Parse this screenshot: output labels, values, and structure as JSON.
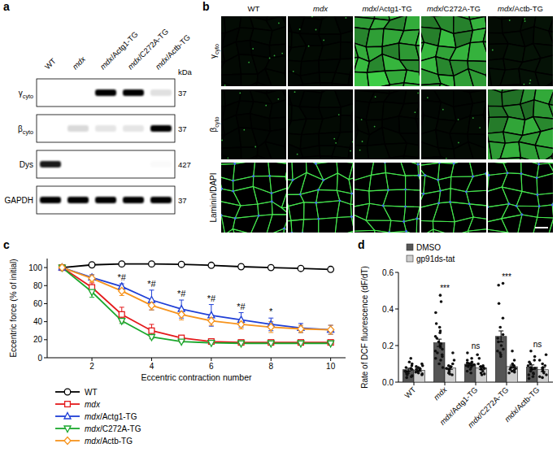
{
  "panels": [
    "a",
    "b",
    "c",
    "d"
  ],
  "blot": {
    "lanes": [
      "WT",
      "mdx",
      "mdx/Actg1-TG",
      "mdx/C272A-TG",
      "mdx/Actb-TG"
    ],
    "unit": "kDa",
    "rows": [
      {
        "symbol": "γ",
        "subscript": "cyto",
        "kda": "37",
        "bands": [
          0,
          0,
          1,
          1,
          0.12
        ]
      },
      {
        "symbol": "β",
        "subscript": "cyto",
        "kda": "37",
        "bands": [
          0,
          0.15,
          0.1,
          0.1,
          1
        ]
      },
      {
        "symbol": "Dys",
        "kda": "427",
        "bands": [
          0.9,
          0,
          0,
          0,
          0.02
        ]
      },
      {
        "symbol": "GAPDH",
        "kda": "37",
        "bands": [
          1,
          1,
          1,
          1,
          1
        ]
      }
    ]
  },
  "micrographs": {
    "columns": [
      "WT",
      "mdx",
      "mdx/Actg1-TG",
      "mdx/C272A-TG",
      "mdx/Actb-TG"
    ],
    "rows": [
      {
        "symbol": "γ",
        "subscript": "cyto",
        "intensity": [
          0.05,
          0.05,
          0.9,
          0.85,
          0.08
        ]
      },
      {
        "symbol": "β",
        "subscript": "cyto",
        "intensity": [
          0.04,
          0.05,
          0.05,
          0.05,
          0.75
        ]
      },
      {
        "symbol": "Laminin/DAPI",
        "intensity": [
          1,
          1,
          1,
          1,
          1
        ]
      }
    ]
  },
  "chart_data": [
    {
      "type": "line",
      "x_label": "Eccentric contraction number",
      "y_label": "Eccentric force (% of initial)",
      "x": [
        1,
        2,
        3,
        4,
        5,
        6,
        7,
        8,
        9,
        10
      ],
      "xlim": [
        0.5,
        10.5
      ],
      "xticks": [
        2,
        4,
        6,
        8,
        10
      ],
      "ylim": [
        0,
        110
      ],
      "yticks": [
        0,
        20,
        40,
        60,
        80,
        100
      ],
      "grid": false,
      "legend": "bottom",
      "series": [
        {
          "name": "WT",
          "color": "#000000",
          "marker": "circle",
          "values": [
            100,
            103,
            104,
            104,
            103.5,
            102.5,
            101,
            100,
            99,
            98
          ],
          "errors": [
            0,
            0.5,
            0.5,
            0.5,
            0.5,
            0.5,
            0.5,
            0.5,
            0.5,
            0.5
          ]
        },
        {
          "name": "mdx",
          "color": "#e41a1c",
          "marker": "square",
          "values": [
            100,
            78,
            48,
            30,
            22,
            18,
            17,
            17,
            17,
            17
          ],
          "errors": [
            0,
            5,
            8,
            7,
            1.5,
            1,
            1,
            1,
            1,
            1
          ]
        },
        {
          "name": "mdx/Actg1-TG",
          "color": "#1f3fd6",
          "marker": "triangle",
          "values": [
            100,
            89,
            79,
            64,
            54,
            47,
            42,
            37,
            33,
            31
          ],
          "errors": [
            0,
            3,
            3,
            11,
            10,
            12,
            8,
            7,
            5,
            5
          ]
        },
        {
          "name": "mdx/C272A-TG",
          "color": "#1aa82c",
          "marker": "triangle-down",
          "values": [
            100,
            73,
            41,
            23,
            18,
            16.5,
            16,
            16,
            16,
            16
          ],
          "errors": [
            0,
            6,
            3,
            2,
            1,
            1,
            1,
            1,
            1,
            1
          ]
        },
        {
          "name": "mdx/Actb-TG",
          "color": "#f7941d",
          "marker": "diamond",
          "values": [
            100,
            88,
            74,
            58,
            48,
            41,
            37,
            34,
            32,
            31
          ],
          "errors": [
            0,
            4,
            5,
            5,
            6,
            5,
            5,
            6,
            4,
            5
          ]
        }
      ],
      "annotations": [
        {
          "x": 3,
          "series": 2,
          "text": "*#"
        },
        {
          "x": 4,
          "series": 2,
          "text": "*#"
        },
        {
          "x": 5,
          "series": 2,
          "text": "*#"
        },
        {
          "x": 6,
          "series": 2,
          "text": "*#"
        },
        {
          "x": 7,
          "series": 2,
          "text": "*#"
        },
        {
          "x": 8,
          "series": 2,
          "text": "*"
        }
      ]
    },
    {
      "type": "bar",
      "y_label": "Rate of DCF fluorescence (dF/dT)",
      "categories": [
        "WT",
        "mdx",
        "mdx/Actg1-TG",
        "mdx/C272A-TG",
        "mdx/Actb-TG"
      ],
      "ylim": [
        0,
        0.6
      ],
      "yticks": [
        {
          "value": 0,
          "label": "0.0"
        },
        0.2,
        0.4,
        0.6
      ],
      "grid": false,
      "legend": "top-left",
      "series": [
        {
          "name": "DMSO",
          "color": "#555555",
          "values": [
            0.068,
            0.215,
            0.098,
            0.25,
            0.082
          ],
          "errors": [
            0.008,
            0.02,
            0.008,
            0.03,
            0.012
          ],
          "points": [
            [
              0.13,
              0.11,
              0.1,
              0.09,
              0.08,
              0.075,
              0.07,
              0.06,
              0.055,
              0.05,
              0.045,
              0.04,
              0.035,
              0.03,
              0.025
            ],
            [
              0.475,
              0.44,
              0.38,
              0.32,
              0.3,
              0.28,
              0.27,
              0.25,
              0.24,
              0.22,
              0.21,
              0.2,
              0.19,
              0.18,
              0.17,
              0.16,
              0.15,
              0.14,
              0.13,
              0.12,
              0.1,
              0.08
            ],
            [
              0.16,
              0.13,
              0.12,
              0.11,
              0.105,
              0.1,
              0.1,
              0.095,
              0.09,
              0.09,
              0.085,
              0.08,
              0.07,
              0.06,
              0.05
            ],
            [
              0.54,
              0.53,
              0.43,
              0.35,
              0.3,
              0.26,
              0.24,
              0.22,
              0.2,
              0.18,
              0.17,
              0.16,
              0.15,
              0.14
            ],
            [
              0.17,
              0.14,
              0.12,
              0.11,
              0.1,
              0.09,
              0.08,
              0.075,
              0.07,
              0.06,
              0.05,
              0.045,
              0.04,
              0.03,
              0.02
            ]
          ]
        },
        {
          "name": "gp91ds-tat",
          "color": "#cfcfcf",
          "values": [
            0.065,
            0.078,
            0.078,
            0.085,
            0.068
          ],
          "errors": [
            0.006,
            0.008,
            0.008,
            0.008,
            0.01
          ],
          "points": [
            [
              0.1,
              0.09,
              0.085,
              0.08,
              0.075,
              0.07,
              0.065,
              0.06,
              0.055,
              0.05,
              0.045,
              0.04
            ],
            [
              0.16,
              0.12,
              0.1,
              0.09,
              0.085,
              0.08,
              0.075,
              0.07,
              0.06,
              0.05,
              0.045,
              0.04
            ],
            [
              0.15,
              0.13,
              0.1,
              0.09,
              0.085,
              0.08,
              0.075,
              0.07,
              0.06,
              0.05,
              0.045,
              0.04
            ],
            [
              0.17,
              0.12,
              0.1,
              0.09,
              0.085,
              0.08,
              0.075,
              0.07,
              0.065,
              0.06,
              0.055,
              0.05
            ],
            [
              0.15,
              0.12,
              0.1,
              0.09,
              0.08,
              0.07,
              0.06,
              0.05,
              0.04,
              0.03,
              0.025
            ]
          ]
        }
      ],
      "annotations": [
        {
          "category": 1,
          "text": "***"
        },
        {
          "category": 2,
          "text": "ns"
        },
        {
          "category": 3,
          "text": "***"
        },
        {
          "category": 4,
          "text": "ns"
        }
      ]
    }
  ]
}
